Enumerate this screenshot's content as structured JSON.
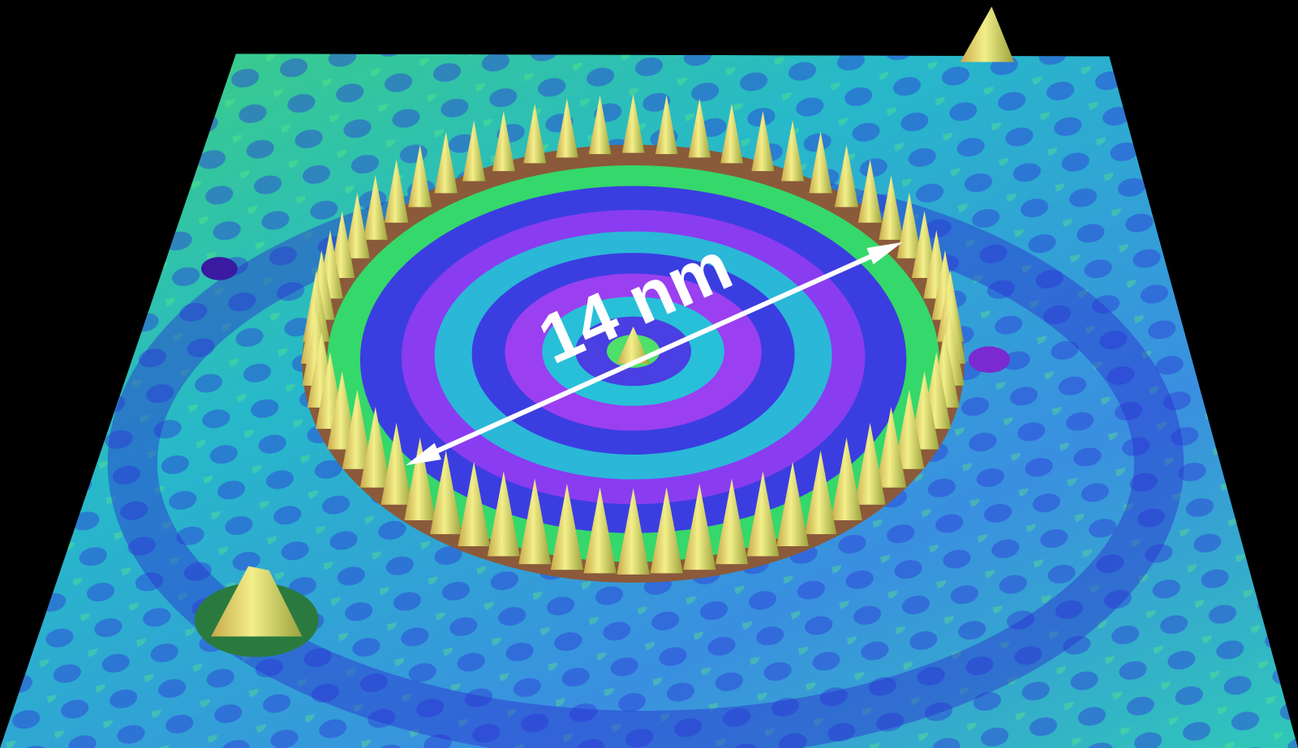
{
  "annotation": {
    "label": "14 nm"
  }
}
